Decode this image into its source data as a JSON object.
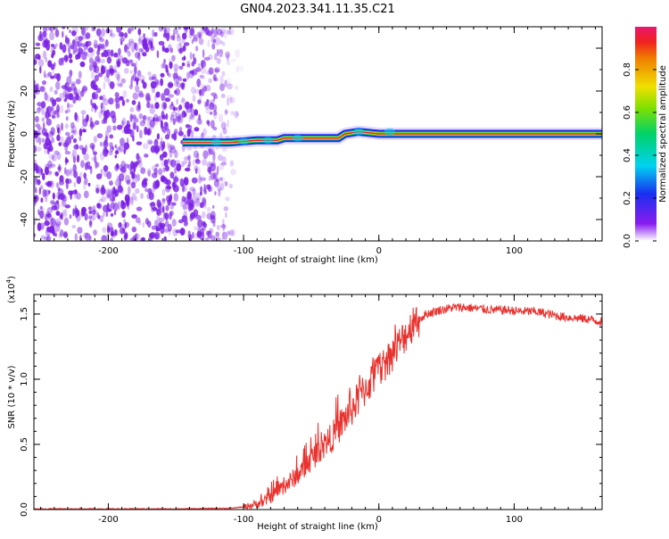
{
  "title": "GN04.2023.341.11.35.C21",
  "colors": {
    "snr_line": "#e8322e",
    "noise": "#7a1fe6",
    "band_core": "#e8203a",
    "band_mid": "#00d26a",
    "band_outer": "#1a2ff0"
  },
  "chart_data": [
    {
      "type": "heatmap",
      "title": "GN04.2023.341.11.35.C21",
      "xlabel": "Height of straight line (km)",
      "ylabel": "Frequency (Hz)",
      "xlim": [
        -255,
        165
      ],
      "ylim": [
        -50,
        50
      ],
      "x_ticks": [
        "-200",
        "-100",
        "0",
        "100"
      ],
      "y_ticks": [
        "-40",
        "-20",
        "0",
        "20",
        "40"
      ],
      "colorbar": {
        "label": "Normalized spectral amplitude",
        "range": [
          0,
          1
        ],
        "ticks": [
          "0.0",
          "0.2",
          "0.4",
          "0.6",
          "0.8"
        ],
        "colormap": "rainbow"
      },
      "features": {
        "noise_region_x": [
          -255,
          -100
        ],
        "band_start_x": -145,
        "band_stable_from_x": 20,
        "band_frequency_hz": 0,
        "band_path": [
          [
            -145,
            -4
          ],
          [
            -110,
            -4
          ],
          [
            -90,
            -3
          ],
          [
            -75,
            -3
          ],
          [
            -70,
            -2
          ],
          [
            -30,
            -2
          ],
          [
            -25,
            0
          ],
          [
            -15,
            1
          ],
          [
            0,
            0
          ],
          [
            20,
            0
          ],
          [
            165,
            0
          ]
        ]
      }
    },
    {
      "type": "line",
      "xlabel": "Height of straight line (km)",
      "ylabel": "SNR (10 * v/v)",
      "y_multiplier": "(x10",
      "y_multiplier_exp": "4",
      "y_multiplier_close": ")",
      "xlim": [
        -255,
        165
      ],
      "ylim": [
        0,
        1.65
      ],
      "x_ticks": [
        "-200",
        "-100",
        "0",
        "100"
      ],
      "y_ticks": [
        "0.0",
        "0.5",
        "1.0",
        "1.5"
      ],
      "series": [
        {
          "color": "#e8322e",
          "x": [
            -255,
            -200,
            -150,
            -110,
            -100,
            -95,
            -85,
            -75,
            -65,
            -55,
            -45,
            -35,
            -25,
            -15,
            -5,
            5,
            15,
            25,
            35,
            45,
            55,
            65,
            75,
            85,
            95,
            105,
            115,
            125,
            135,
            145,
            155,
            165
          ],
          "y": [
            0.005,
            0.005,
            0.005,
            0.01,
            0.02,
            0.03,
            0.06,
            0.14,
            0.22,
            0.32,
            0.45,
            0.55,
            0.7,
            0.85,
            1.0,
            1.13,
            1.27,
            1.42,
            1.5,
            1.53,
            1.55,
            1.55,
            1.54,
            1.53,
            1.53,
            1.52,
            1.52,
            1.5,
            1.48,
            1.47,
            1.46,
            1.44
          ]
        }
      ]
    }
  ]
}
